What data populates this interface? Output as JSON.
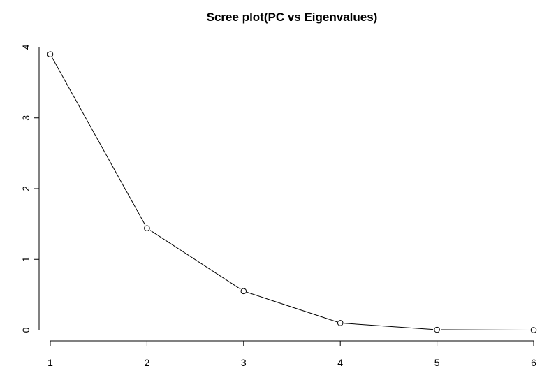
{
  "chart_data": {
    "type": "line",
    "title": "Scree plot(PC vs Eigenvalues)",
    "xlabel": "",
    "ylabel": "",
    "x": [
      1,
      2,
      3,
      4,
      5,
      6
    ],
    "series": [
      {
        "values": [
          3.9,
          1.44,
          0.55,
          0.1,
          0.005,
          0.0
        ]
      }
    ],
    "x_ticks": [
      "1",
      "2",
      "3",
      "4",
      "5",
      "6"
    ],
    "y_ticks": [
      "0",
      "1",
      "2",
      "3",
      "4"
    ],
    "xlim": [
      1,
      6
    ],
    "ylim": [
      0,
      4
    ],
    "grid": false,
    "marker": "open-circle",
    "line_color": "#000000"
  }
}
